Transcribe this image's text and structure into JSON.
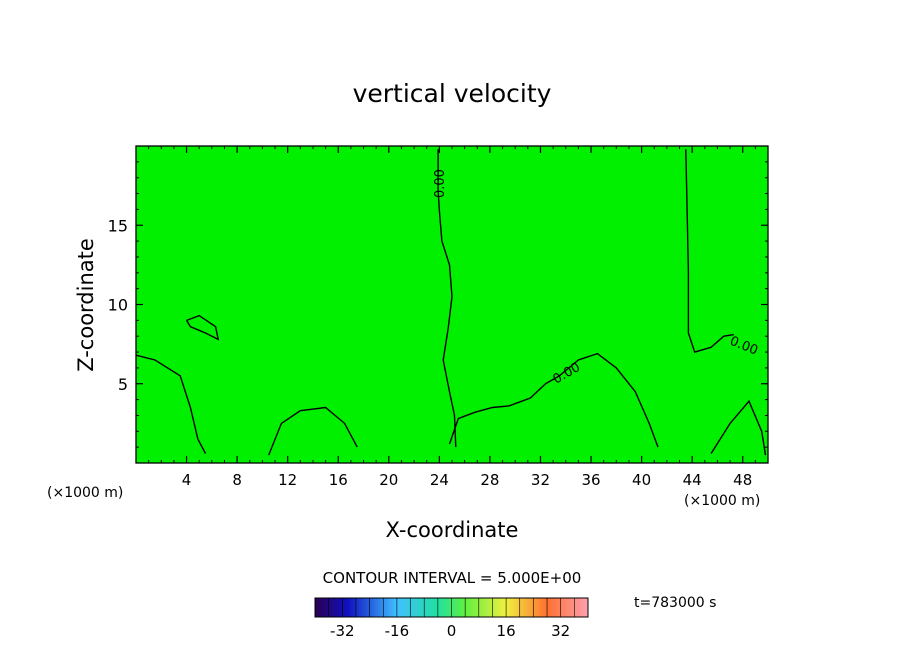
{
  "chart_data": {
    "type": "heatmap",
    "title": "vertical velocity",
    "xlabel": "X-coordinate",
    "ylabel": "Z-coordinate",
    "x_unit_label": "(×1000 m)",
    "xlim": [
      0,
      50
    ],
    "ylim": [
      0,
      20
    ],
    "x_ticks": [
      4,
      8,
      12,
      16,
      20,
      24,
      28,
      32,
      36,
      40,
      44,
      48
    ],
    "y_ticks": [
      5,
      10,
      15
    ],
    "contour_interval_text": "CONTOUR INTERVAL = 5.000E+00",
    "contour_label": "0.00",
    "time_label": "t=783000  s",
    "colorbar": {
      "min": -40,
      "max": 40,
      "ticks": [
        -32,
        -16,
        0,
        16,
        32
      ]
    },
    "field_color": "#00f000",
    "zero_contours": [
      {
        "name": "mid",
        "points": [
          [
            23.9,
            19.8
          ],
          [
            23.9,
            17.2
          ],
          [
            24.0,
            15.9
          ],
          [
            24.2,
            14.0
          ],
          [
            24.8,
            12.5
          ],
          [
            25.0,
            10.5
          ],
          [
            24.7,
            8.5
          ],
          [
            24.3,
            6.5
          ],
          [
            24.8,
            4.5
          ],
          [
            25.2,
            3.0
          ],
          [
            25.3,
            1.0
          ]
        ]
      },
      {
        "name": "right-ridge",
        "points": [
          [
            24.8,
            1.2
          ],
          [
            25.5,
            2.8
          ],
          [
            26.8,
            3.2
          ],
          [
            28.2,
            3.5
          ],
          [
            29.5,
            3.6
          ],
          [
            31.2,
            4.1
          ],
          [
            32.4,
            5.0
          ],
          [
            33.5,
            5.5
          ],
          [
            35.0,
            6.5
          ],
          [
            36.5,
            6.9
          ],
          [
            38.0,
            6.0
          ],
          [
            39.5,
            4.5
          ],
          [
            40.6,
            2.5
          ],
          [
            41.3,
            1.0
          ]
        ]
      },
      {
        "name": "right-column",
        "points": [
          [
            43.5,
            19.8
          ],
          [
            43.6,
            16.0
          ],
          [
            43.7,
            12.0
          ],
          [
            43.7,
            8.2
          ],
          [
            44.2,
            7.0
          ],
          [
            45.5,
            7.3
          ],
          [
            46.5,
            8.0
          ],
          [
            47.3,
            8.1
          ]
        ]
      },
      {
        "name": "left-bump",
        "points": [
          [
            0.0,
            6.8
          ],
          [
            1.5,
            6.5
          ],
          [
            3.5,
            5.5
          ],
          [
            4.3,
            3.5
          ],
          [
            4.9,
            1.5
          ],
          [
            5.5,
            0.6
          ]
        ]
      },
      {
        "name": "center-bump",
        "points": [
          [
            10.5,
            0.5
          ],
          [
            11.5,
            2.5
          ],
          [
            13.0,
            3.3
          ],
          [
            15.0,
            3.5
          ],
          [
            16.5,
            2.5
          ],
          [
            17.5,
            1.0
          ]
        ]
      },
      {
        "name": "oval",
        "points": [
          [
            4.0,
            9.0
          ],
          [
            5.0,
            9.3
          ],
          [
            6.3,
            8.6
          ],
          [
            6.5,
            7.8
          ],
          [
            5.5,
            8.2
          ],
          [
            4.3,
            8.6
          ],
          [
            4.0,
            9.0
          ]
        ]
      },
      {
        "name": "far-right-bump",
        "points": [
          [
            45.5,
            0.6
          ],
          [
            47.0,
            2.5
          ],
          [
            48.5,
            3.9
          ],
          [
            49.5,
            2.0
          ],
          [
            49.8,
            0.5
          ]
        ]
      }
    ]
  }
}
